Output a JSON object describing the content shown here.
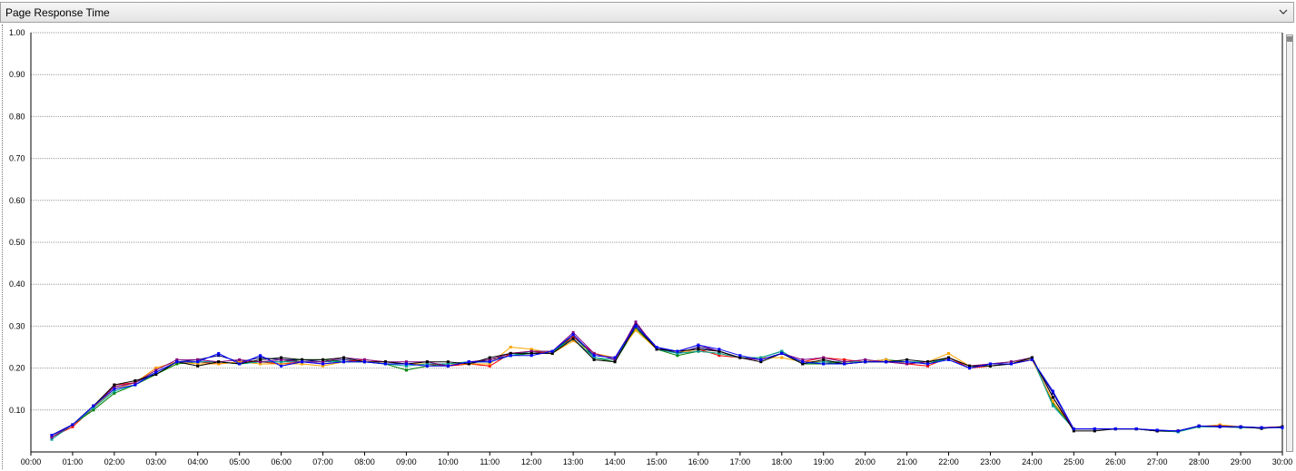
{
  "header": {
    "title": "Page Response Time",
    "dropdown_icon": "chevron-down-icon"
  },
  "chart_data": {
    "type": "line",
    "title": "",
    "xlabel": "",
    "ylabel": "",
    "ylim": [
      0,
      1.0
    ],
    "xlim": [
      0,
      30
    ],
    "grid": true,
    "y_ticks": [
      "0.10",
      "0.20",
      "0.30",
      "0.40",
      "0.50",
      "0.60",
      "0.70",
      "0.80",
      "0.90",
      "1.00"
    ],
    "x_ticks": [
      "00:00",
      "01:00",
      "02:00",
      "03:00",
      "04:00",
      "05:00",
      "06:00",
      "07:00",
      "08:00",
      "09:00",
      "10:00",
      "11:00",
      "12:00",
      "13:00",
      "14:00",
      "15:00",
      "16:00",
      "17:00",
      "18:00",
      "19:00",
      "20:00",
      "21:00",
      "22:00",
      "23:00",
      "24:00",
      "25:00",
      "26:00",
      "27:00",
      "28:00",
      "29:00",
      "30:00"
    ],
    "x": [
      0.5,
      1,
      1.5,
      2,
      2.5,
      3,
      3.5,
      4,
      4.5,
      5,
      5.5,
      6,
      6.5,
      7,
      7.5,
      8,
      8.5,
      9,
      9.5,
      10,
      10.5,
      11,
      11.5,
      12,
      12.5,
      13,
      13.5,
      14,
      14.5,
      15,
      15.5,
      16,
      16.5,
      17,
      17.5,
      18,
      18.5,
      19,
      19.5,
      20,
      20.5,
      21,
      21.5,
      22,
      22.5,
      23,
      23.5,
      24,
      24.5,
      25,
      25.5,
      26,
      26.5,
      27,
      27.5,
      28,
      28.5,
      29,
      29.5,
      30
    ],
    "series": [
      {
        "color": "#000080",
        "values": [
          0.04,
          0.065,
          0.11,
          0.155,
          0.165,
          0.19,
          0.215,
          0.22,
          0.23,
          0.215,
          0.225,
          0.22,
          0.22,
          0.215,
          0.22,
          0.215,
          0.21,
          0.21,
          0.21,
          0.205,
          0.21,
          0.22,
          0.23,
          0.235,
          0.24,
          0.275,
          0.23,
          0.225,
          0.305,
          0.25,
          0.235,
          0.25,
          0.24,
          0.225,
          0.22,
          0.235,
          0.215,
          0.215,
          0.21,
          0.215,
          0.22,
          0.21,
          0.215,
          0.225,
          0.2,
          0.21,
          0.21,
          0.22,
          0.14,
          0.055,
          0.055,
          0.055,
          0.055,
          0.052,
          0.05,
          0.062,
          0.06,
          0.06,
          0.058,
          0.06
        ]
      },
      {
        "color": "#ff0000",
        "values": [
          0.035,
          0.06,
          0.105,
          0.16,
          0.165,
          0.2,
          0.215,
          0.215,
          0.21,
          0.215,
          0.215,
          0.21,
          0.215,
          0.21,
          0.215,
          0.22,
          0.215,
          0.21,
          0.21,
          0.205,
          0.21,
          0.205,
          0.235,
          0.24,
          0.235,
          0.275,
          0.235,
          0.225,
          0.295,
          0.245,
          0.24,
          0.245,
          0.23,
          0.225,
          0.22,
          0.235,
          0.215,
          0.225,
          0.22,
          0.215,
          0.215,
          0.21,
          0.205,
          0.225,
          0.2,
          0.205,
          0.21,
          0.22,
          0.12,
          0.055,
          0.055,
          0.055,
          0.055,
          0.05,
          0.05,
          0.062,
          0.06,
          0.058,
          0.058,
          0.06
        ]
      },
      {
        "color": "#008000",
        "values": [
          0.035,
          0.065,
          0.1,
          0.14,
          0.16,
          0.185,
          0.21,
          0.215,
          0.215,
          0.21,
          0.215,
          0.215,
          0.22,
          0.22,
          0.215,
          0.215,
          0.21,
          0.195,
          0.205,
          0.21,
          0.215,
          0.215,
          0.23,
          0.235,
          0.235,
          0.28,
          0.225,
          0.215,
          0.295,
          0.245,
          0.23,
          0.24,
          0.235,
          0.225,
          0.225,
          0.24,
          0.21,
          0.21,
          0.215,
          0.215,
          0.22,
          0.215,
          0.21,
          0.225,
          0.205,
          0.205,
          0.21,
          0.225,
          0.115,
          0.055,
          0.055,
          0.055,
          0.055,
          0.05,
          0.048,
          0.06,
          0.06,
          0.06,
          0.056,
          0.06
        ]
      },
      {
        "color": "#ffa500",
        "values": [
          0.04,
          0.065,
          0.105,
          0.15,
          0.165,
          0.2,
          0.215,
          0.21,
          0.21,
          0.215,
          0.21,
          0.21,
          0.21,
          0.205,
          0.215,
          0.215,
          0.215,
          0.21,
          0.21,
          0.21,
          0.21,
          0.21,
          0.25,
          0.245,
          0.235,
          0.265,
          0.235,
          0.225,
          0.29,
          0.245,
          0.24,
          0.24,
          0.235,
          0.225,
          0.225,
          0.225,
          0.215,
          0.215,
          0.215,
          0.215,
          0.22,
          0.21,
          0.215,
          0.235,
          0.205,
          0.21,
          0.215,
          0.22,
          0.12,
          0.055,
          0.055,
          0.055,
          0.055,
          0.05,
          0.05,
          0.06,
          0.065,
          0.06,
          0.058,
          0.06
        ]
      },
      {
        "color": "#00a0a0",
        "values": [
          0.03,
          0.065,
          0.105,
          0.145,
          0.16,
          0.19,
          0.215,
          0.215,
          0.215,
          0.21,
          0.215,
          0.215,
          0.215,
          0.215,
          0.215,
          0.215,
          0.21,
          0.205,
          0.21,
          0.21,
          0.215,
          0.215,
          0.23,
          0.24,
          0.24,
          0.27,
          0.225,
          0.22,
          0.3,
          0.245,
          0.235,
          0.24,
          0.235,
          0.225,
          0.225,
          0.24,
          0.21,
          0.215,
          0.215,
          0.215,
          0.215,
          0.215,
          0.215,
          0.22,
          0.2,
          0.21,
          0.215,
          0.225,
          0.11,
          0.055,
          0.055,
          0.055,
          0.055,
          0.05,
          0.048,
          0.06,
          0.06,
          0.058,
          0.058,
          0.058
        ]
      },
      {
        "color": "#800080",
        "values": [
          0.035,
          0.065,
          0.11,
          0.155,
          0.165,
          0.195,
          0.22,
          0.22,
          0.215,
          0.22,
          0.215,
          0.22,
          0.215,
          0.215,
          0.225,
          0.22,
          0.215,
          0.215,
          0.215,
          0.205,
          0.215,
          0.22,
          0.235,
          0.24,
          0.24,
          0.285,
          0.235,
          0.22,
          0.31,
          0.245,
          0.24,
          0.255,
          0.24,
          0.225,
          0.22,
          0.235,
          0.22,
          0.225,
          0.215,
          0.22,
          0.215,
          0.21,
          0.215,
          0.225,
          0.205,
          0.21,
          0.215,
          0.225,
          0.13,
          0.055,
          0.055,
          0.055,
          0.055,
          0.05,
          0.05,
          0.062,
          0.062,
          0.06,
          0.058,
          0.06
        ]
      },
      {
        "color": "#000000",
        "values": [
          0.04,
          0.065,
          0.11,
          0.16,
          0.17,
          0.185,
          0.215,
          0.205,
          0.215,
          0.21,
          0.22,
          0.225,
          0.22,
          0.22,
          0.225,
          0.215,
          0.215,
          0.21,
          0.215,
          0.215,
          0.21,
          0.225,
          0.235,
          0.235,
          0.235,
          0.27,
          0.22,
          0.215,
          0.3,
          0.245,
          0.24,
          0.245,
          0.24,
          0.225,
          0.215,
          0.235,
          0.21,
          0.22,
          0.21,
          0.215,
          0.215,
          0.22,
          0.215,
          0.225,
          0.205,
          0.205,
          0.21,
          0.225,
          0.13,
          0.05,
          0.05,
          0.055,
          0.055,
          0.05,
          0.05,
          0.062,
          0.06,
          0.06,
          0.056,
          0.06
        ]
      },
      {
        "color": "#0000ff",
        "values": [
          0.04,
          0.065,
          0.11,
          0.15,
          0.16,
          0.19,
          0.215,
          0.215,
          0.235,
          0.21,
          0.23,
          0.205,
          0.215,
          0.21,
          0.215,
          0.215,
          0.21,
          0.21,
          0.205,
          0.205,
          0.215,
          0.215,
          0.23,
          0.23,
          0.24,
          0.28,
          0.23,
          0.225,
          0.3,
          0.25,
          0.24,
          0.255,
          0.245,
          0.23,
          0.22,
          0.235,
          0.215,
          0.21,
          0.21,
          0.215,
          0.215,
          0.215,
          0.21,
          0.22,
          0.2,
          0.21,
          0.21,
          0.22,
          0.145,
          0.055,
          0.055,
          0.055,
          0.055,
          0.052,
          0.05,
          0.062,
          0.06,
          0.06,
          0.058,
          0.058
        ]
      }
    ]
  }
}
